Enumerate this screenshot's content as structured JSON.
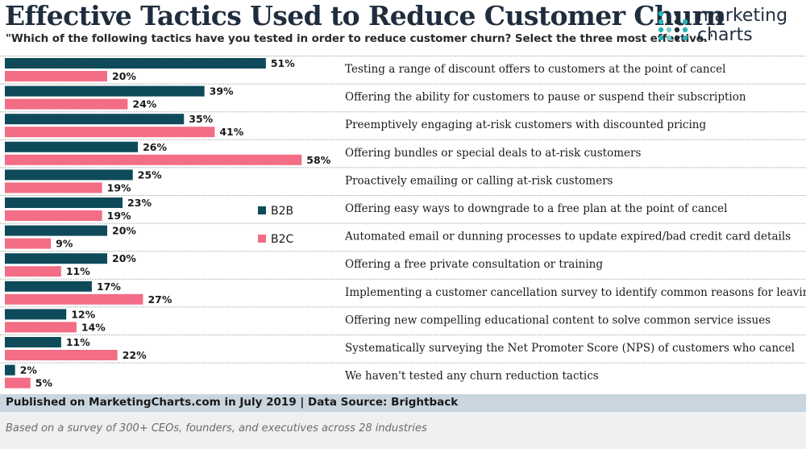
{
  "header": {
    "title": "Effective Tactics Used to Reduce Customer Churn",
    "subtitle": "\"Which of the following tactics have you tested in order to reduce customer churn? Select the three most effective.\""
  },
  "logo": {
    "line1": "marketing",
    "line2": "charts"
  },
  "colors": {
    "b2b": "#0e4a5a",
    "b2c": "#f26d85",
    "divider": "#b8b8b8",
    "title": "#1f2d3d",
    "footer": "#c9d6df"
  },
  "chart_data": {
    "type": "bar",
    "orientation": "horizontal",
    "title": "Effective Tactics Used to Reduce Customer Churn",
    "value_format": "%",
    "xlim": [
      0,
      60
    ],
    "categories": [
      "Testing a range of discount offers to customers at the point of cancel",
      "Offering the ability for customers to pause or suspend their subscription",
      "Preemptively engaging at-risk customers with discounted pricing",
      "Offering bundles or special deals to at-risk customers",
      "Proactively emailing or calling at-risk customers",
      "Offering easy ways to downgrade to a free plan at the point of cancel",
      "Automated email or dunning processes to update expired/bad credit card details",
      "Offering a free private consultation or training",
      "Implementing a customer cancellation survey to identify common reasons for leaving",
      "Offering new compelling educational content to solve common service issues",
      "Systematically surveying the Net Promoter Score (NPS) of customers who cancel",
      "We haven't tested any churn reduction tactics"
    ],
    "series": [
      {
        "name": "B2B",
        "values": [
          51,
          39,
          35,
          26,
          25,
          23,
          20,
          20,
          17,
          12,
          11,
          2
        ]
      },
      {
        "name": "B2C",
        "values": [
          20,
          24,
          41,
          58,
          19,
          19,
          9,
          11,
          27,
          14,
          22,
          5
        ]
      }
    ],
    "legend": [
      "B2B",
      "B2C"
    ]
  },
  "footer": {
    "published": "Published on MarketingCharts.com in July 2019 | Data Source: Brightback",
    "note": "Based on a survey of 300+ CEOs, founders, and executives across 28 industries"
  }
}
